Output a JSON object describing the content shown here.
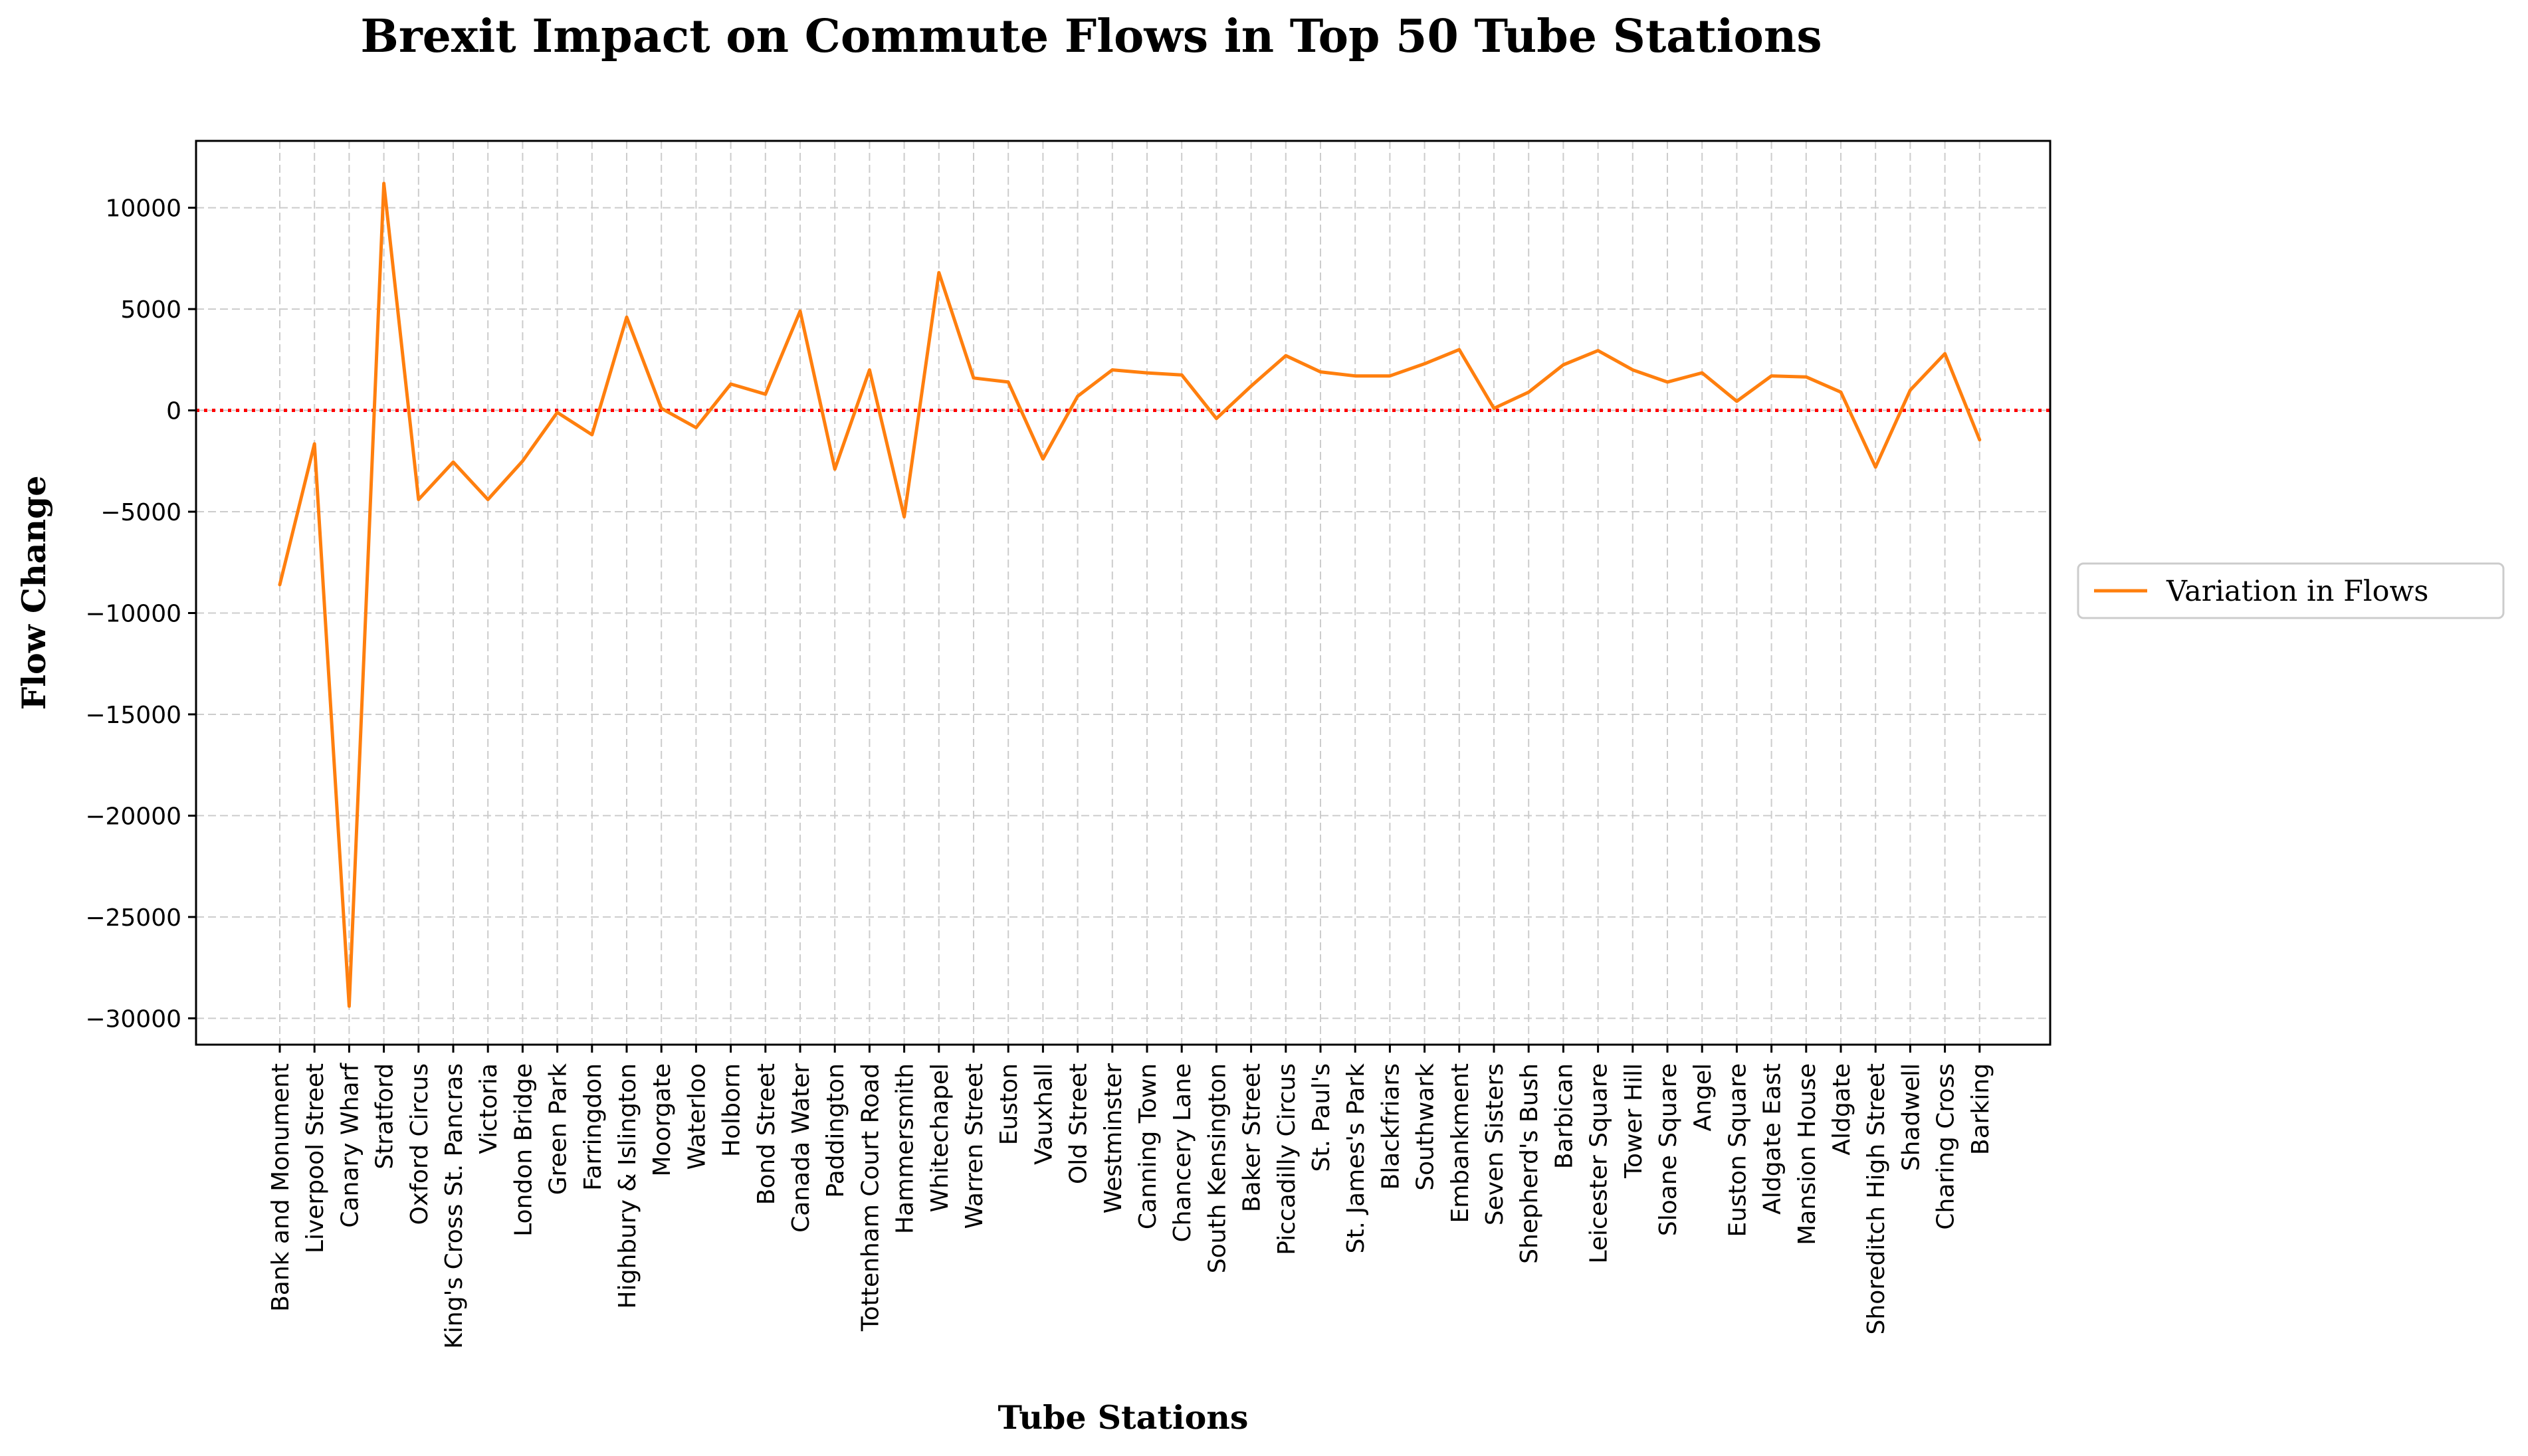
{
  "chart_data": {
    "type": "line",
    "title": "Brexit Impact on Commute Flows in Top 50 Tube Stations",
    "xlabel": "Tube Stations",
    "ylabel": "Flow Change",
    "categories": [
      "Bank and Monument",
      "Liverpool Street",
      "Canary Wharf",
      "Stratford",
      "Oxford Circus",
      "King's Cross St. Pancras",
      "Victoria",
      "London Bridge",
      "Green Park",
      "Farringdon",
      "Highbury & Islington",
      "Moorgate",
      "Waterloo",
      "Holborn",
      "Bond Street",
      "Canada Water",
      "Paddington",
      "Tottenham Court Road",
      "Hammersmith",
      "Whitechapel",
      "Warren Street",
      "Euston",
      "Vauxhall",
      "Old Street",
      "Westminster",
      "Canning Town",
      "Chancery Lane",
      "South Kensington",
      "Baker Street",
      "Piccadilly Circus",
      "St. Paul's",
      "St. James's Park",
      "Blackfriars",
      "Southwark",
      "Embankment",
      "Seven Sisters",
      "Shepherd's Bush",
      "Barbican",
      "Leicester Square",
      "Tower Hill",
      "Sloane Square",
      "Angel",
      "Euston Square",
      "Aldgate East",
      "Mansion House",
      "Aldgate",
      "Shoreditch High Street",
      "Shadwell",
      "Charing Cross",
      "Barking"
    ],
    "series": [
      {
        "name": "Variation in Flows",
        "color": "#ff7f0e",
        "values": [
          -8600,
          -1650,
          -29400,
          11200,
          -4400,
          -2550,
          -4400,
          -2500,
          -100,
          -1200,
          4600,
          100,
          -850,
          1300,
          800,
          4900,
          -2900,
          2000,
          -5250,
          6800,
          1600,
          1400,
          -2400,
          700,
          2000,
          1850,
          1750,
          -400,
          1200,
          2700,
          1900,
          1700,
          1700,
          2300,
          3000,
          100,
          900,
          2250,
          2950,
          2000,
          1400,
          1850,
          450,
          1700,
          1650,
          900,
          -2800,
          1000,
          2800,
          -1450
        ]
      }
    ],
    "reference_line": {
      "y": 0,
      "color": "#ff0000",
      "style": "dotted"
    },
    "ylim": [
      -31300,
      13300
    ],
    "yticks": [
      -30000,
      -25000,
      -20000,
      -15000,
      -10000,
      -5000,
      0,
      5000,
      10000
    ],
    "ytick_labels": [
      "−30000",
      "−25000",
      "−20000",
      "−15000",
      "−10000",
      "−5000",
      "0",
      "5000",
      "10000"
    ],
    "grid": true,
    "legend_position": "right-center"
  }
}
